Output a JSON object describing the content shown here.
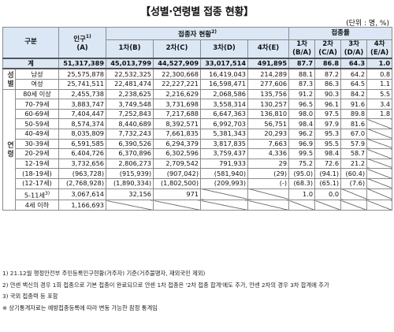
{
  "title": "【성별·연령별 접종 현황】",
  "unit": "(단위 : 명, %)",
  "header": {
    "category": "구분",
    "population": "인구",
    "population_sup": "1)",
    "population_sub": "(A)",
    "vacc_status": "접종자 현황",
    "vacc_status_sup": "2)",
    "vacc_rate": "접종률",
    "dose1": "1차(B)",
    "dose2": "2차(C)",
    "dose3": "3차(D)",
    "dose4": "4차(E)",
    "r1": "1차",
    "r1sub": "(B/A)",
    "r2": "2차",
    "r2sub": "(C/A)",
    "r3": "3차",
    "r3sub": "(D/A)",
    "r4": "4차",
    "r4sub": "(E/A)"
  },
  "groups": {
    "gender": "성별",
    "age": "연령"
  },
  "total": [
    "계",
    "51,317,389",
    "45,013,799",
    "44,527,909",
    "33,017,514",
    "491,895",
    "87.7",
    "86.8",
    "64.3",
    "1.0"
  ],
  "gender_rows": [
    [
      "남성",
      "25,575,878",
      "22,532,325",
      "22,300,668",
      "16,419,043",
      "214,289",
      "88.1",
      "87.2",
      "64.2",
      "0.8"
    ],
    [
      "여성",
      "25,741,511",
      "22,481,474",
      "22,227,221",
      "16,598,471",
      "277,606",
      "87.3",
      "86.3",
      "64.5",
      "1.1"
    ]
  ],
  "age_rows": [
    [
      "80세 이상",
      "2,455,738",
      "2,238,625",
      "2,216,629",
      "2,068,586",
      "135,756",
      "91.2",
      "90.3",
      "84.2",
      "5.5"
    ],
    [
      "70-79세",
      "3,883,747",
      "3,749,548",
      "3,731,698",
      "3,558,314",
      "130,257",
      "96.5",
      "96.1",
      "91.6",
      "3.4"
    ],
    [
      "60-69세",
      "7,404,447",
      "7,252,843",
      "7,217,688",
      "6,647,363",
      "136,810",
      "98.0",
      "97.5",
      "89.8",
      "1.8"
    ],
    [
      "50-59세",
      "8,574,374",
      "8,440,689",
      "8,392,571",
      "6,992,703",
      "56,751",
      "98.4",
      "97.9",
      "81.6",
      ""
    ],
    [
      "40-49세",
      "8,035,809",
      "7,732,243",
      "7,661,835",
      "5,381,343",
      "20,293",
      "96.2",
      "95.3",
      "67.0",
      ""
    ],
    [
      "30-39세",
      "6,591,585",
      "6,390,526",
      "6,294,379",
      "3,817,835",
      "7,663",
      "96.9",
      "95.5",
      "57.9",
      ""
    ],
    [
      "20-29세",
      "6,404,726",
      "6,370,896",
      "6,302,596",
      "3,759,437",
      "4,336",
      "99.5",
      "98.4",
      "58.7",
      ""
    ],
    [
      "12-19세",
      "3,732,656",
      "2,806,273",
      "2,709,542",
      "791,933",
      "29",
      "75.2",
      "72.6",
      "21.2",
      ""
    ],
    [
      "(18-19세)",
      "(963,728)",
      "(915,939)",
      "(907,042)",
      "(581,940)",
      "(29)",
      "(95.0)",
      "(94.1)",
      "(60.4)",
      ""
    ],
    [
      "(12-17세)",
      "(2,768,928)",
      "(1,890,334)",
      "(1,802,500)",
      "(209,993)",
      "(-)",
      "(68.3)",
      "(65.1)",
      "(7.6)",
      ""
    ],
    [
      "5-11세",
      "3,067,614",
      "32,156",
      "971",
      "",
      "",
      "1.0",
      "0.0",
      "",
      ""
    ],
    [
      "4세 이하",
      "1,166,693",
      "",
      "",
      "",
      "",
      "",
      "",
      "",
      ""
    ]
  ],
  "age_row_sups": {
    "5-11세": "3)"
  },
  "notes": [
    "1) 21.12월 행정안전부 주민등록인구현황(거주자) 기준(거주불명자, 재외국민 제외)",
    "2) 얀센 백신의 경우 1회 접종으로 기본 접종이 완료되므로 얀센 1차 접종은 '2차 접종 합계'에도 추가, 얀센 2차의 경우 3차 합계에 추가",
    "3) 국외 접종력 등 포함",
    "※ 상기통계자료는 예방접종등록에 따라 변동 가능한 잠정 통계임"
  ]
}
